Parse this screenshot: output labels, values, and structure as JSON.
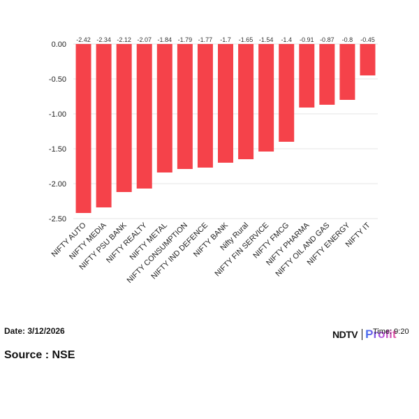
{
  "chart_data": {
    "type": "bar",
    "categories": [
      "NIFTY AUTO",
      "NIFTY MEDIA",
      "NIFTY PSU BANK",
      "NIFTY REALTY",
      "NIFTY METAL",
      "NIFTY CONSUMPTION",
      "NIFTY IND DEFENCE",
      "NIFTY BANK",
      "Nifty Rural",
      "NIFTY FIN SERVICE",
      "NIFTY FMCG",
      "NIFTY PHARMA",
      "NIFTY OIL AND GAS",
      "NIFTY ENERGY",
      "NIFTY IT"
    ],
    "values": [
      -2.42,
      -2.34,
      -2.12,
      -2.07,
      -1.84,
      -1.79,
      -1.77,
      -1.7,
      -1.65,
      -1.54,
      -1.4,
      -0.91,
      -0.87,
      -0.8,
      -0.45
    ],
    "data_labels": [
      "-2.42",
      "-2.34",
      "-2.12",
      "-2.07",
      "-1.84",
      "-1.79",
      "-1.77",
      "-1.7",
      "-1.65",
      "-1.54",
      "-1.4",
      "-0.91",
      "-0.87",
      "-0.8",
      "-0.45"
    ],
    "y_ticks": [
      0.0,
      -0.5,
      -1.0,
      -1.5,
      -2.0,
      -2.5
    ],
    "y_tick_labels": [
      "0.00",
      "-0.50",
      "-1.00",
      "-1.50",
      "-2.00",
      "-2.50"
    ],
    "ylim": [
      -2.5,
      0
    ],
    "grid": true,
    "legend": "none",
    "bar_color": "#f5424a",
    "title": "",
    "xlabel": "",
    "ylabel": ""
  },
  "footer": {
    "date": "Date: 3/12/2026",
    "source": "Source : NSE",
    "time": "Time: 9:20",
    "brand_ndtv": "NDTV",
    "brand_profit": "Profit"
  }
}
